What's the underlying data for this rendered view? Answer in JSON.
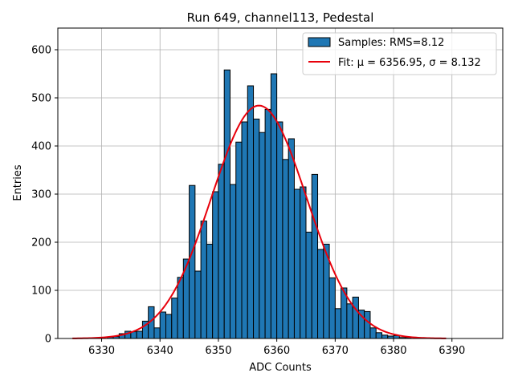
{
  "chart_data": {
    "type": "bar",
    "title": "Run 649, channel113, Pedestal",
    "xlabel": "ADC Counts",
    "ylabel": "Entries",
    "xlim": [
      6322.5,
      6398.7
    ],
    "ylim": [
      0,
      645
    ],
    "xticks": [
      6330,
      6340,
      6350,
      6360,
      6370,
      6380,
      6390
    ],
    "yticks": [
      0,
      100,
      200,
      300,
      400,
      500,
      600
    ],
    "grid": true,
    "legend_position": "top-right",
    "bin_width": 1,
    "bins": [
      {
        "x": 6325,
        "value": 0
      },
      {
        "x": 6326,
        "value": 0
      },
      {
        "x": 6327,
        "value": 0
      },
      {
        "x": 6328,
        "value": 0
      },
      {
        "x": 6329,
        "value": 0
      },
      {
        "x": 6330,
        "value": 0
      },
      {
        "x": 6331,
        "value": 3
      },
      {
        "x": 6332,
        "value": 4
      },
      {
        "x": 6333,
        "value": 10
      },
      {
        "x": 6334,
        "value": 15
      },
      {
        "x": 6335,
        "value": 14
      },
      {
        "x": 6336,
        "value": 15
      },
      {
        "x": 6337,
        "value": 36
      },
      {
        "x": 6338,
        "value": 66
      },
      {
        "x": 6339,
        "value": 22
      },
      {
        "x": 6340,
        "value": 55
      },
      {
        "x": 6341,
        "value": 50
      },
      {
        "x": 6342,
        "value": 84
      },
      {
        "x": 6343,
        "value": 127
      },
      {
        "x": 6344,
        "value": 165
      },
      {
        "x": 6345,
        "value": 318
      },
      {
        "x": 6346,
        "value": 140
      },
      {
        "x": 6347,
        "value": 244
      },
      {
        "x": 6348,
        "value": 196
      },
      {
        "x": 6349,
        "value": 305
      },
      {
        "x": 6350,
        "value": 362
      },
      {
        "x": 6351,
        "value": 558
      },
      {
        "x": 6352,
        "value": 320
      },
      {
        "x": 6353,
        "value": 408
      },
      {
        "x": 6354,
        "value": 450
      },
      {
        "x": 6355,
        "value": 525
      },
      {
        "x": 6356,
        "value": 456
      },
      {
        "x": 6357,
        "value": 428
      },
      {
        "x": 6358,
        "value": 476
      },
      {
        "x": 6359,
        "value": 550
      },
      {
        "x": 6360,
        "value": 450
      },
      {
        "x": 6361,
        "value": 372
      },
      {
        "x": 6362,
        "value": 415
      },
      {
        "x": 6363,
        "value": 310
      },
      {
        "x": 6364,
        "value": 315
      },
      {
        "x": 6365,
        "value": 221
      },
      {
        "x": 6366,
        "value": 341
      },
      {
        "x": 6367,
        "value": 185
      },
      {
        "x": 6368,
        "value": 196
      },
      {
        "x": 6369,
        "value": 126
      },
      {
        "x": 6370,
        "value": 62
      },
      {
        "x": 6371,
        "value": 105
      },
      {
        "x": 6372,
        "value": 72
      },
      {
        "x": 6373,
        "value": 86
      },
      {
        "x": 6374,
        "value": 59
      },
      {
        "x": 6375,
        "value": 56
      },
      {
        "x": 6376,
        "value": 22
      },
      {
        "x": 6377,
        "value": 12
      },
      {
        "x": 6378,
        "value": 7
      },
      {
        "x": 6379,
        "value": 5
      },
      {
        "x": 6380,
        "value": 6
      },
      {
        "x": 6381,
        "value": 2
      },
      {
        "x": 6382,
        "value": 2
      },
      {
        "x": 6383,
        "value": 0
      },
      {
        "x": 6384,
        "value": 0
      },
      {
        "x": 6385,
        "value": 0
      },
      {
        "x": 6386,
        "value": 0
      },
      {
        "x": 6387,
        "value": 0
      },
      {
        "x": 6388,
        "value": 0
      },
      {
        "x": 6389,
        "value": 0
      },
      {
        "x": 6390,
        "value": 0
      },
      {
        "x": 6391,
        "value": 0
      },
      {
        "x": 6392,
        "value": 0
      },
      {
        "x": 6393,
        "value": 0
      },
      {
        "x": 6394,
        "value": 0
      },
      {
        "x": 6395,
        "value": 0
      }
    ],
    "fit": {
      "type": "gaussian",
      "mu": 6356.95,
      "sigma": 8.132,
      "amplitude": 484,
      "x_range": [
        6325,
        6389
      ]
    },
    "series": [
      {
        "name": "Samples: RMS=8.12",
        "kind": "histogram",
        "color": "#1f77b4",
        "edgecolor": "#000000"
      },
      {
        "name": "Fit: μ = 6356.95, σ = 8.132",
        "kind": "line",
        "color": "#e8000b"
      }
    ]
  }
}
